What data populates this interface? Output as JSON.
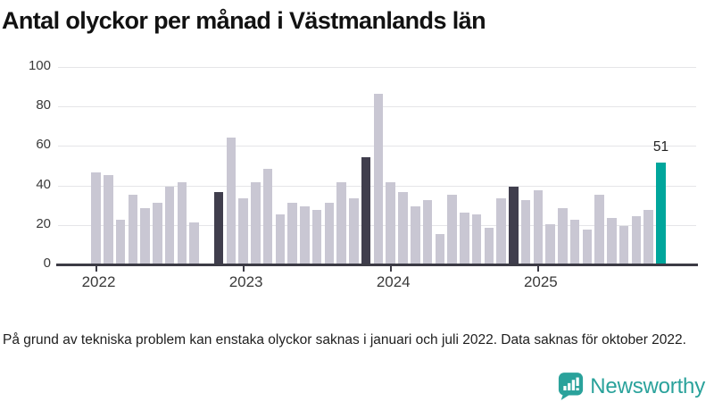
{
  "title": "Antal olyckor per månad i Västmanlands län",
  "footnote": "På grund av tekniska problem kan enstaka olyckor saknas i januari och juli 2022. Data saknas för oktober 2022.",
  "branding": {
    "name": "Newsworthy",
    "icon": "newsworthy-speech-bubble-barchart-icon",
    "color": "#2aa29b"
  },
  "chart_data": {
    "type": "bar",
    "title": "Antal olyckor per månad i Västmanlands län",
    "xlabel": "",
    "ylabel": "",
    "ylim": [
      0,
      100
    ],
    "y_ticks": [
      0,
      20,
      40,
      60,
      80,
      100
    ],
    "grid": true,
    "x_ticks": [
      {
        "label": "2022",
        "month_index": 0
      },
      {
        "label": "2023",
        "month_index": 12
      },
      {
        "label": "2024",
        "month_index": 24
      },
      {
        "label": "2025",
        "month_index": 36
      }
    ],
    "series": [
      {
        "year": 2022,
        "values": [
          46,
          45,
          22,
          35,
          28,
          31,
          39,
          41,
          21,
          null,
          36,
          64
        ]
      },
      {
        "year": 2023,
        "values": [
          33,
          41,
          48,
          25,
          31,
          29,
          27,
          31,
          41,
          33,
          54,
          86
        ]
      },
      {
        "year": 2024,
        "values": [
          41,
          36,
          29,
          32,
          15,
          35,
          26,
          25,
          18,
          33,
          39,
          32
        ]
      },
      {
        "year": 2025,
        "values": [
          37,
          20,
          28,
          22,
          17,
          35,
          23,
          19,
          24,
          27,
          51
        ]
      }
    ],
    "missing_months": [
      "2022-10"
    ],
    "highlighted_months": [
      "2022-11",
      "2023-11",
      "2024-11"
    ],
    "accent_month": "2025-11",
    "annotation": {
      "month": "2025-11",
      "text": "51"
    },
    "colors": {
      "base": "#c9c7d3",
      "highlight": "#403e4d",
      "accent": "#00a69c",
      "gridline": "#e5e5e8",
      "axis": "#3c3b45"
    }
  }
}
